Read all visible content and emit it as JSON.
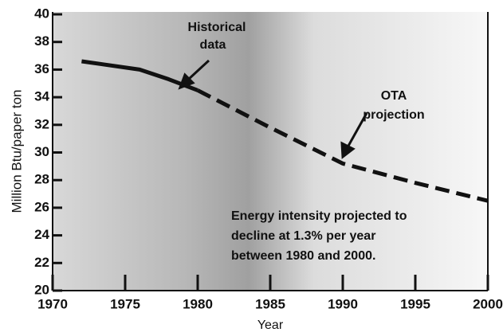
{
  "chart_data": {
    "type": "line",
    "x_label": "Year",
    "y_label": "Million Btu/paper ton",
    "xlim": [
      1970,
      2000
    ],
    "ylim": [
      20,
      40
    ],
    "xticks": [
      1970,
      1975,
      1980,
      1985,
      1990,
      1995,
      2000
    ],
    "yticks": [
      20,
      22,
      24,
      26,
      28,
      30,
      32,
      34,
      36,
      38,
      40
    ],
    "series": [
      {
        "color": "#111111",
        "dashed": false,
        "x": [
          1972,
          1976,
          1978,
          1980
        ],
        "values": [
          36.6,
          36.0,
          35.3,
          34.5
        ]
      },
      {
        "color": "#111111",
        "dashed": true,
        "x": [
          1980,
          1985,
          1990,
          1995,
          2000
        ],
        "values": [
          34.5,
          31.8,
          29.2,
          27.8,
          26.5
        ]
      }
    ],
    "annotations": [
      {
        "lines": [
          "Historical",
          "data"
        ]
      },
      {
        "lines": [
          "OTA",
          "projection"
        ]
      },
      {
        "lines": [
          "Energy intensity projected to",
          "decline at 1.3% per year",
          "between 1980 and 2000."
        ]
      }
    ]
  }
}
